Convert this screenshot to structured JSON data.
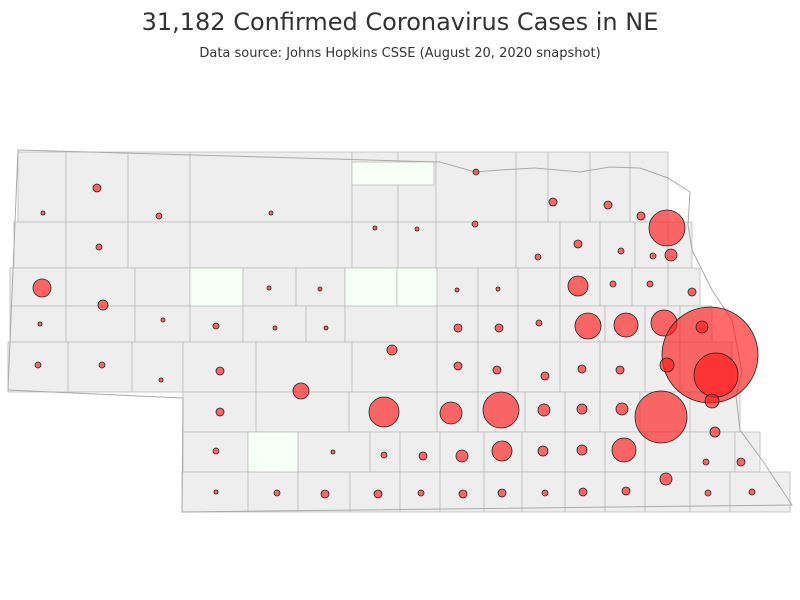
{
  "title": "31,182 Confirmed Coronavirus Cases in NE",
  "subtitle": "Data source: Johns Hopkins CSSE (August 20, 2020 snapshot)",
  "colors": {
    "county_fill": "#eeeeee",
    "zero_fill": "#f5fff5",
    "border": "#bbbbbb",
    "bubble": "#ff1a1a",
    "bubble_stroke": "#222222"
  },
  "chart_data": {
    "type": "bubble-map",
    "region": "Nebraska",
    "legend": "none"
  }
}
